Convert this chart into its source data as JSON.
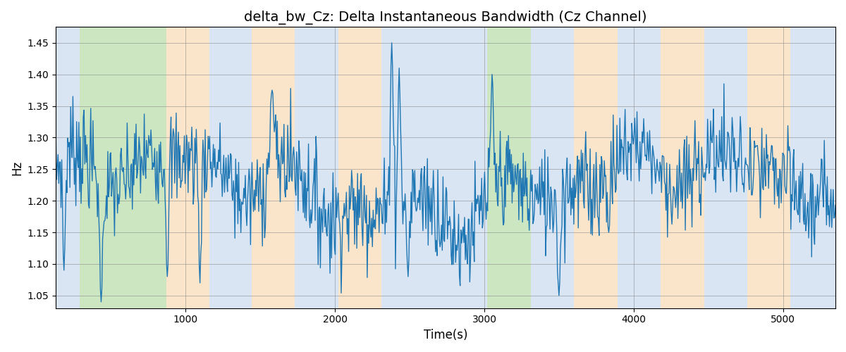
{
  "title": "delta_bw_Cz: Delta Instantaneous Bandwidth (Cz Channel)",
  "xlabel": "Time(s)",
  "ylabel": "Hz",
  "xlim": [
    130,
    5350
  ],
  "ylim": [
    1.03,
    1.475
  ],
  "title_fontsize": 14,
  "label_fontsize": 12,
  "figsize": [
    12.0,
    5.0
  ],
  "dpi": 100,
  "line_color": "#1f77b4",
  "line_width": 1.0,
  "background_color": "#ffffff",
  "bands": [
    {
      "xmin": 130,
      "xmax": 290,
      "color": "#aec6e8",
      "alpha": 0.45
    },
    {
      "xmin": 290,
      "xmax": 870,
      "color": "#90c878",
      "alpha": 0.45
    },
    {
      "xmin": 870,
      "xmax": 1160,
      "color": "#f5c48a",
      "alpha": 0.45
    },
    {
      "xmin": 1160,
      "xmax": 1440,
      "color": "#aec6e8",
      "alpha": 0.45
    },
    {
      "xmin": 1440,
      "xmax": 1730,
      "color": "#f5c48a",
      "alpha": 0.45
    },
    {
      "xmin": 1730,
      "xmax": 2020,
      "color": "#aec6e8",
      "alpha": 0.45
    },
    {
      "xmin": 2020,
      "xmax": 2310,
      "color": "#f5c48a",
      "alpha": 0.45
    },
    {
      "xmin": 2310,
      "xmax": 2600,
      "color": "#aec6e8",
      "alpha": 0.45
    },
    {
      "xmin": 2600,
      "xmax": 2660,
      "color": "#aec6e8",
      "alpha": 0.45
    },
    {
      "xmin": 2660,
      "xmax": 3020,
      "color": "#aec6e8",
      "alpha": 0.45
    },
    {
      "xmin": 3020,
      "xmax": 3310,
      "color": "#90c878",
      "alpha": 0.45
    },
    {
      "xmin": 3310,
      "xmax": 3600,
      "color": "#aec6e8",
      "alpha": 0.45
    },
    {
      "xmin": 3600,
      "xmax": 3890,
      "color": "#f5c48a",
      "alpha": 0.45
    },
    {
      "xmin": 3890,
      "xmax": 4180,
      "color": "#aec6e8",
      "alpha": 0.45
    },
    {
      "xmin": 4180,
      "xmax": 4470,
      "color": "#f5c48a",
      "alpha": 0.45
    },
    {
      "xmin": 4470,
      "xmax": 4760,
      "color": "#aec6e8",
      "alpha": 0.45
    },
    {
      "xmin": 4760,
      "xmax": 5050,
      "color": "#f5c48a",
      "alpha": 0.45
    },
    {
      "xmin": 5050,
      "xmax": 5350,
      "color": "#aec6e8",
      "alpha": 0.45
    }
  ],
  "yticks": [
    1.05,
    1.1,
    1.15,
    1.2,
    1.25,
    1.3,
    1.35,
    1.4,
    1.45
  ],
  "xticks": [
    1000,
    2000,
    3000,
    4000,
    5000
  ]
}
